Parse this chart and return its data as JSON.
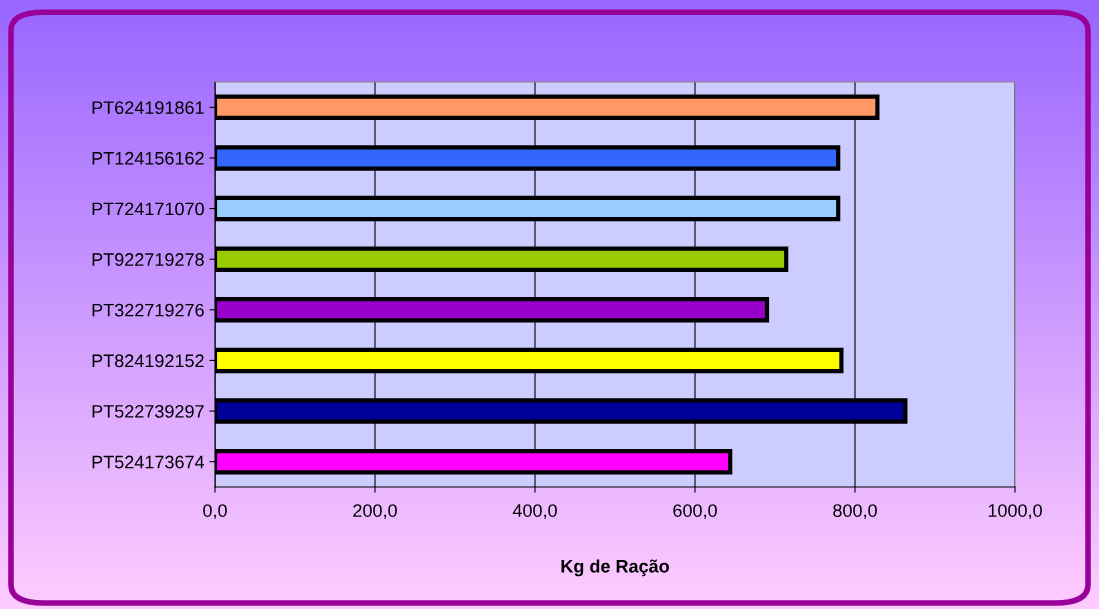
{
  "chart_data": {
    "type": "bar",
    "orientation": "horizontal",
    "xlabel": "Kg de Ração",
    "categories": [
      "PT624191861",
      "PT124156162",
      "PT724171070",
      "PT922719278",
      "PT322719276",
      "PT824192152",
      "PT522739297",
      "PT524173674"
    ],
    "values": [
      828,
      779,
      779,
      714,
      690,
      783,
      863,
      644
    ],
    "colors": [
      "#ff9966",
      "#3366ff",
      "#99ccff",
      "#99cc00",
      "#9900cc",
      "#ffff00",
      "#000099",
      "#ff00ff"
    ],
    "xlim": [
      0,
      1000
    ],
    "xticks": [
      {
        "value": 0,
        "label": "0,0"
      },
      {
        "value": 200,
        "label": "200,0"
      },
      {
        "value": 400,
        "label": "400,0"
      },
      {
        "value": 600,
        "label": "600,0"
      },
      {
        "value": 800,
        "label": "800,0"
      },
      {
        "value": 1000,
        "label": "1000,0"
      }
    ],
    "grid": "x",
    "legend": false
  }
}
